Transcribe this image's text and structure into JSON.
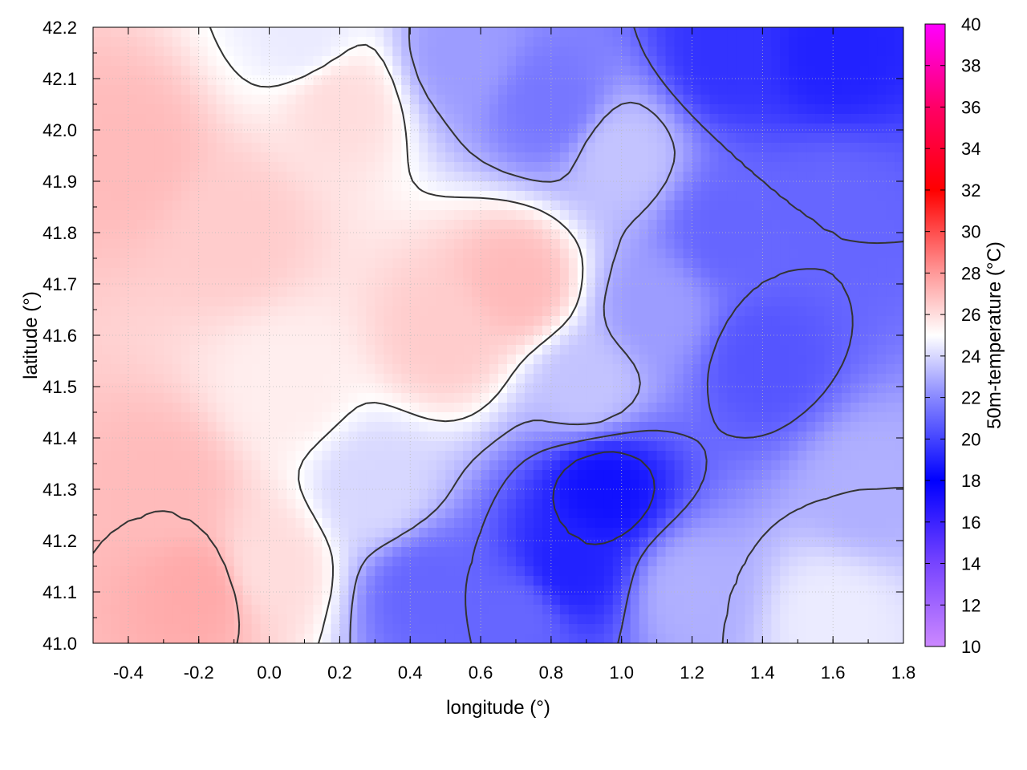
{
  "chart_data": {
    "type": "heatmap",
    "xlabel": "longitude (°)",
    "ylabel": "latitude (°)",
    "colorbar_label": "50m-temperature (°C)",
    "xlim": [
      -0.5,
      1.8
    ],
    "ylim": [
      41.0,
      42.2
    ],
    "x_ticks": [
      "-0.4",
      "-0.2",
      "0.0",
      "0.2",
      "0.4",
      "0.6",
      "0.8",
      "1.0",
      "1.2",
      "1.4",
      "1.6",
      "1.8"
    ],
    "y_ticks": [
      "41.0",
      "41.1",
      "41.2",
      "41.3",
      "41.4",
      "41.5",
      "41.6",
      "41.7",
      "41.8",
      "41.9",
      "42.0",
      "42.1",
      "42.2"
    ],
    "colorbar_range": [
      10,
      40
    ],
    "colorbar_ticks": [
      "10",
      "12",
      "14",
      "16",
      "18",
      "20",
      "22",
      "24",
      "26",
      "28",
      "30",
      "32",
      "34",
      "36",
      "38",
      "40"
    ],
    "colormap": [
      {
        "value": 10,
        "color": "#cc88ff"
      },
      {
        "value": 14,
        "color": "#7744ff"
      },
      {
        "value": 18,
        "color": "#0000ff"
      },
      {
        "value": 22,
        "color": "#8888ff"
      },
      {
        "value": 25,
        "color": "#ffffff"
      },
      {
        "value": 28,
        "color": "#ff9999"
      },
      {
        "value": 32,
        "color": "#ff0000"
      },
      {
        "value": 36,
        "color": "#ff0066"
      },
      {
        "value": 40,
        "color": "#ff00ff"
      }
    ],
    "contours": true,
    "grid": true,
    "temperature_regions": [
      {
        "lon": -0.4,
        "lat": 41.95,
        "t": 27
      },
      {
        "lon": -0.1,
        "lat": 41.8,
        "t": 26.5
      },
      {
        "lon": 0.2,
        "lat": 42.05,
        "t": 26
      },
      {
        "lon": 0.5,
        "lat": 41.6,
        "t": 26.5
      },
      {
        "lon": 0.7,
        "lat": 41.7,
        "t": 27
      },
      {
        "lon": -0.3,
        "lat": 41.3,
        "t": 27
      },
      {
        "lon": -0.2,
        "lat": 41.1,
        "t": 27.5
      },
      {
        "lon": 0.0,
        "lat": 41.15,
        "t": 26
      },
      {
        "lon": 0.05,
        "lat": 41.5,
        "t": 25.5
      },
      {
        "lon": 0.3,
        "lat": 41.3,
        "t": 24
      },
      {
        "lon": 0.45,
        "lat": 41.1,
        "t": 21
      },
      {
        "lon": 0.7,
        "lat": 41.05,
        "t": 21
      },
      {
        "lon": 0.85,
        "lat": 41.15,
        "t": 19
      },
      {
        "lon": 0.95,
        "lat": 41.3,
        "t": 18.5
      },
      {
        "lon": 1.2,
        "lat": 41.1,
        "t": 23
      },
      {
        "lon": 1.6,
        "lat": 41.05,
        "t": 24.5
      },
      {
        "lon": 1.7,
        "lat": 41.3,
        "t": 23
      },
      {
        "lon": 1.4,
        "lat": 41.55,
        "t": 20.5
      },
      {
        "lon": 1.3,
        "lat": 41.8,
        "t": 21
      },
      {
        "lon": 1.6,
        "lat": 41.85,
        "t": 21
      },
      {
        "lon": 1.1,
        "lat": 41.65,
        "t": 22.5
      },
      {
        "lon": 1.0,
        "lat": 41.95,
        "t": 23.5
      },
      {
        "lon": 0.8,
        "lat": 42.05,
        "t": 21.5
      },
      {
        "lon": 0.55,
        "lat": 42.15,
        "t": 22.5
      },
      {
        "lon": 1.3,
        "lat": 42.15,
        "t": 19.5
      },
      {
        "lon": 1.6,
        "lat": 42.15,
        "t": 19
      },
      {
        "lon": 0.9,
        "lat": 41.5,
        "t": 23.5
      },
      {
        "lon": 0.1,
        "lat": 42.18,
        "t": 24.5
      }
    ]
  }
}
